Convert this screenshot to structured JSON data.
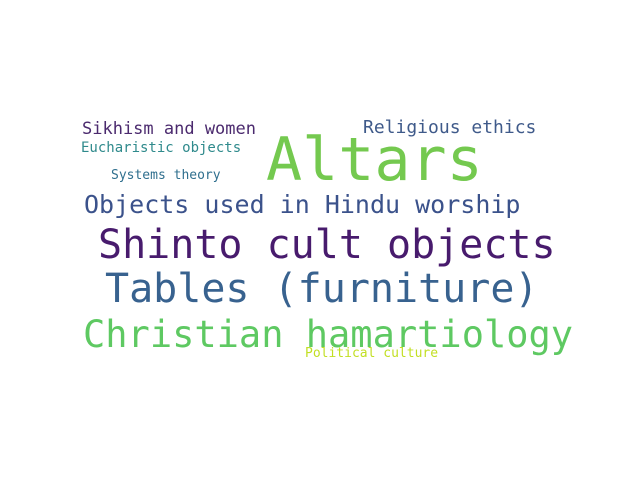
{
  "words": [
    {
      "text": "Sikhism and women",
      "color": "#4b2a6e"
    },
    {
      "text": "Religious ethics",
      "color": "#3f5a8a"
    },
    {
      "text": "Eucharistic objects",
      "color": "#2f8a8c"
    },
    {
      "text": "Altars",
      "color": "#74c94f"
    },
    {
      "text": "Systems theory",
      "color": "#2f6f8e"
    },
    {
      "text": "Objects used in Hindu worship",
      "color": "#3b528b"
    },
    {
      "text": "Shinto cult objects",
      "color": "#481b6d"
    },
    {
      "text": "Tables (furniture)",
      "color": "#38628f"
    },
    {
      "text": "Christian hamartiology",
      "color": "#5ec962"
    },
    {
      "text": "Political culture",
      "color": "#c2df23"
    }
  ]
}
